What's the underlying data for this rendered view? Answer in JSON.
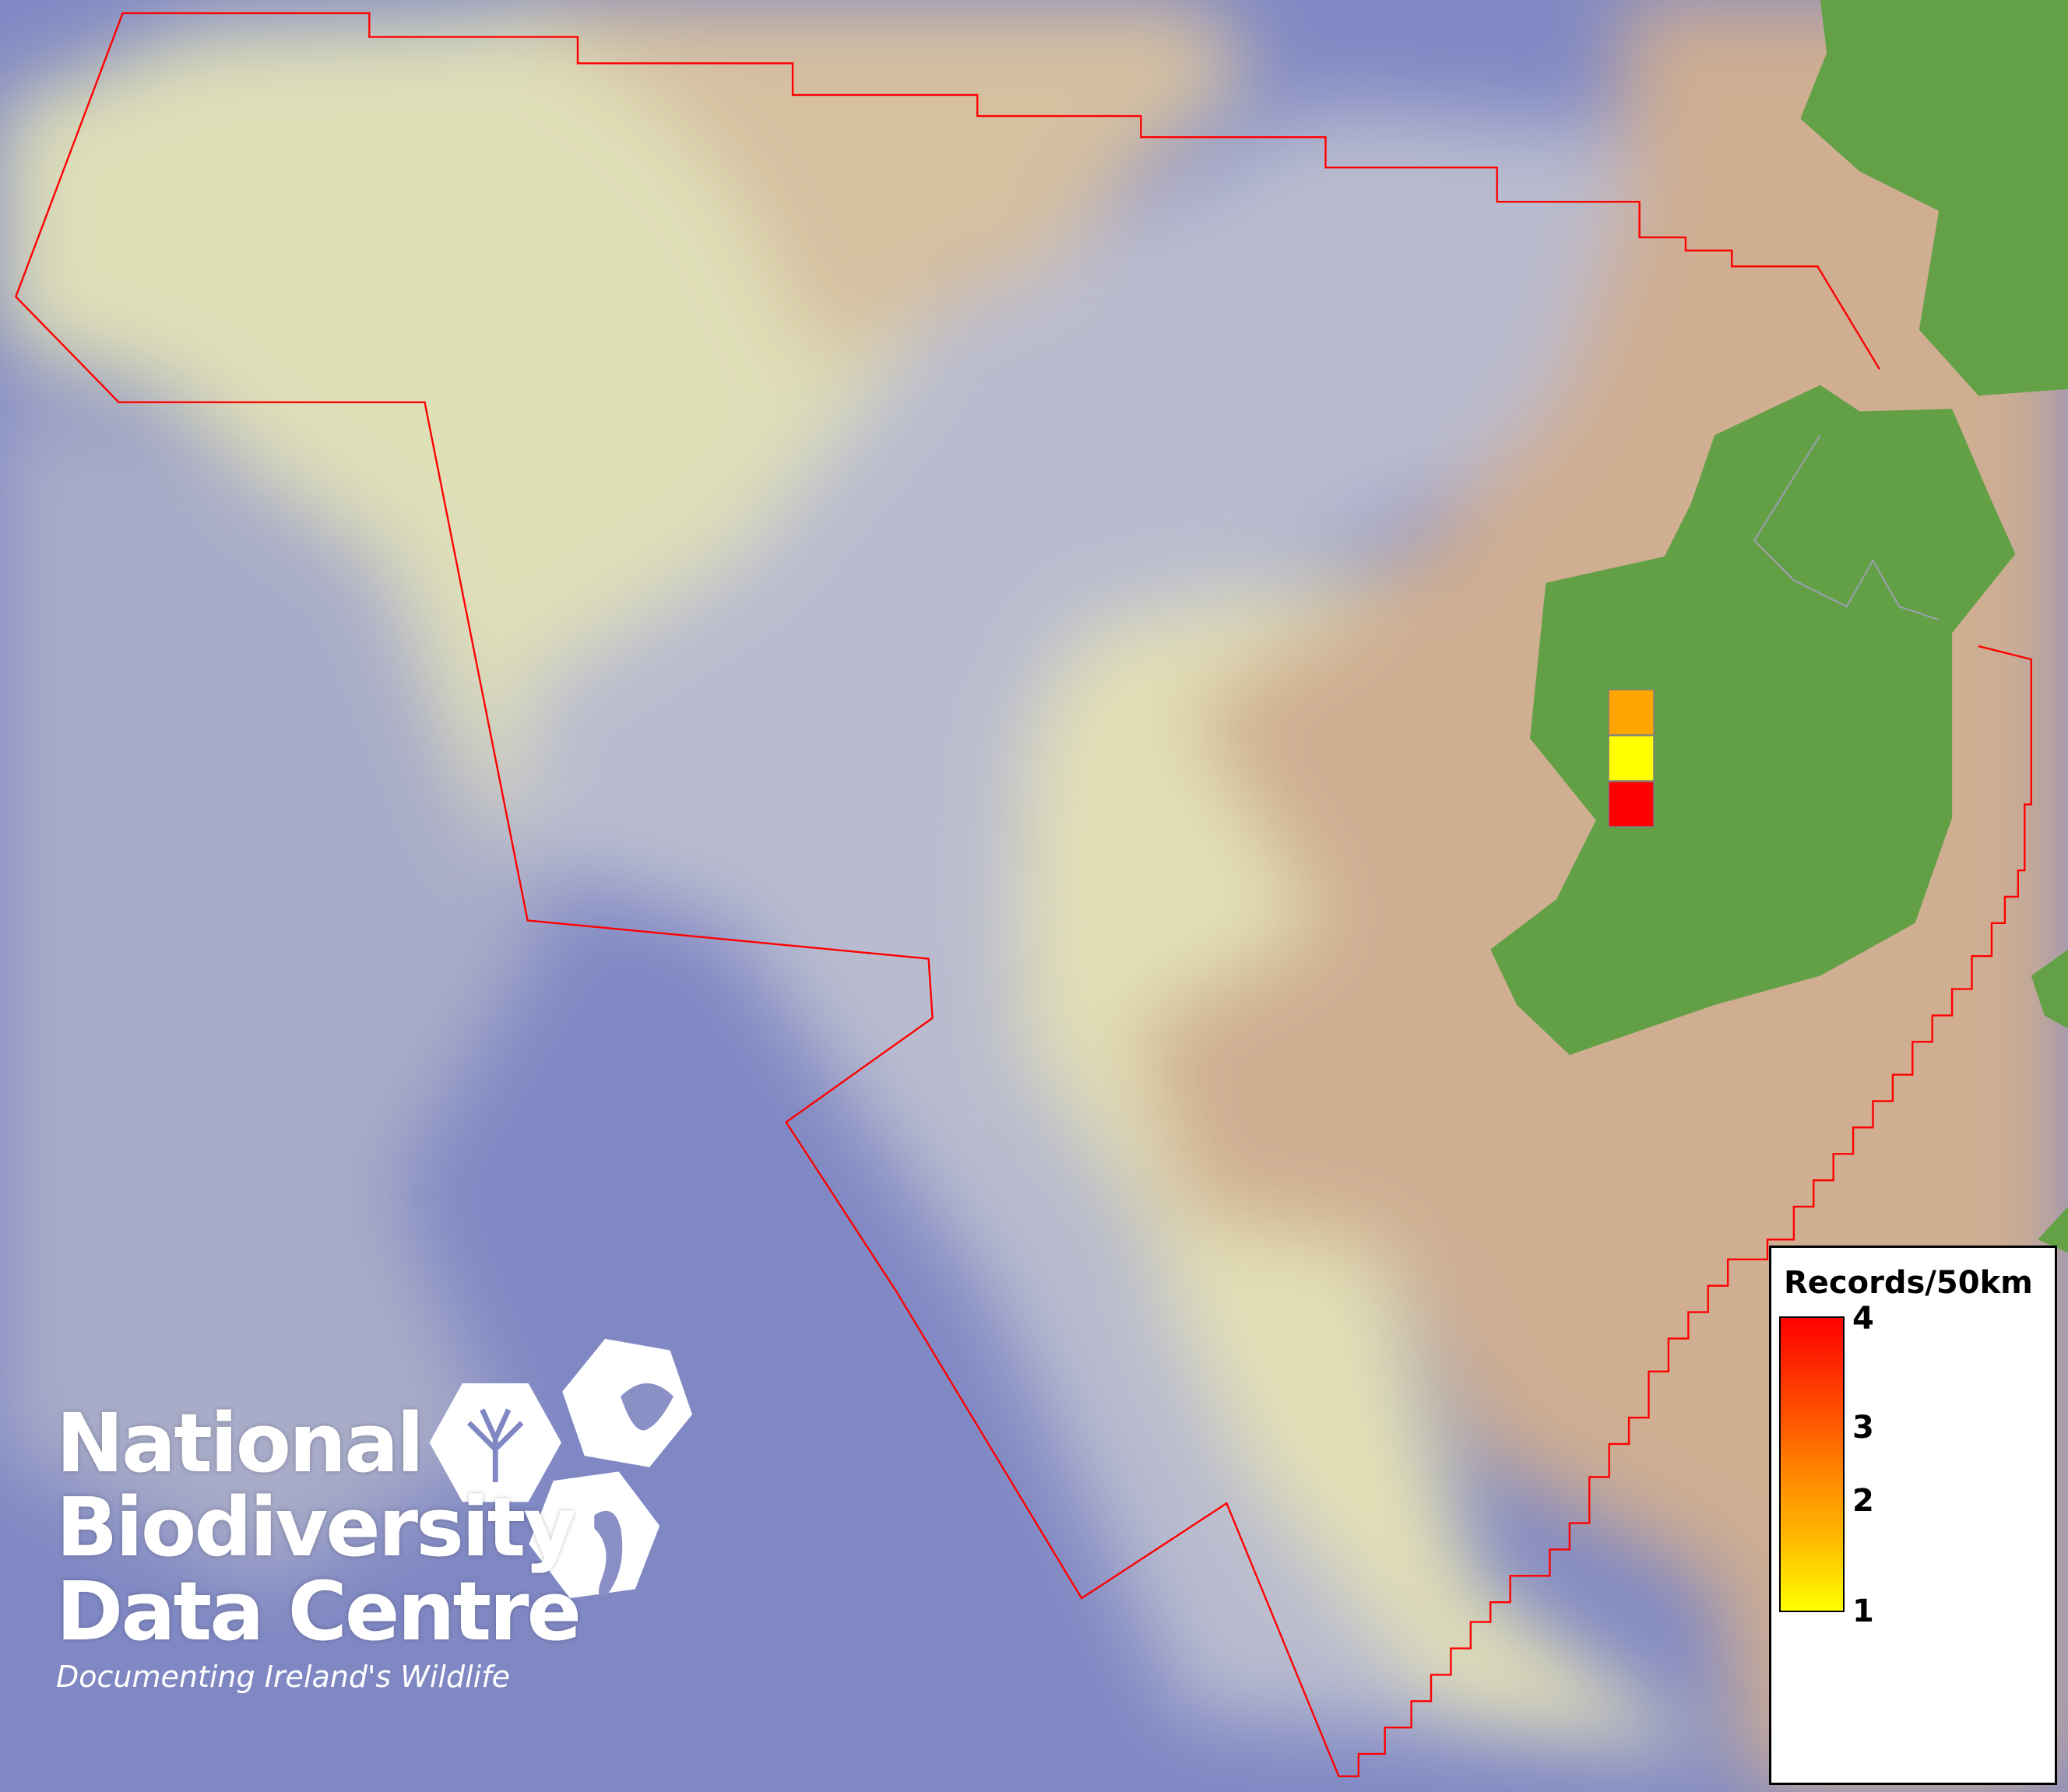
{
  "map": {
    "colors": {
      "deep_ocean": "#7f87c3",
      "slope": "#b8bccd",
      "shelf_pale": "#dfdeb6",
      "shelf_tan": "#cfae92",
      "land": "#63a045",
      "boundary": "#ff0000"
    },
    "grid_cells": [
      {
        "value": 2,
        "color": "#ffa500"
      },
      {
        "value": 1,
        "color": "#ffff00"
      },
      {
        "value": 4,
        "color": "#ff0000"
      }
    ]
  },
  "legend": {
    "title": "Records/50km",
    "min": 1,
    "max": 4,
    "ticks": [
      "4",
      "3",
      "2",
      "1"
    ],
    "gradient": [
      "#ffff00",
      "#ffa500",
      "#ff0000"
    ]
  },
  "logo": {
    "line1": "National",
    "line2": "Biodiversity",
    "line3": "Data Centre",
    "tagline": "Documenting Ireland's Wildlife"
  }
}
